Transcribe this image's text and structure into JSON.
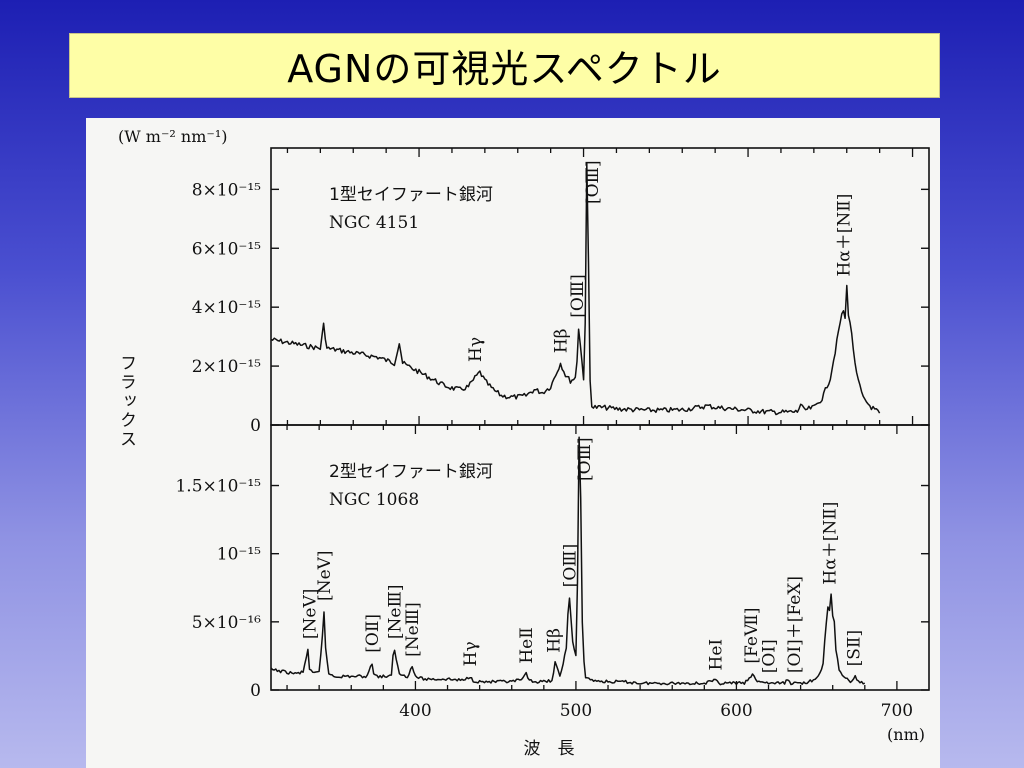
{
  "slide": {
    "title": "AGNの可視光スペクトル"
  },
  "figure": {
    "yunit": "(W m⁻² nm⁻¹)",
    "ylabel": "フラックス",
    "xlabel": "波　長",
    "xunit": "(nm)"
  },
  "chart_data": [
    {
      "type": "line",
      "title": "1型セイファート銀河",
      "subtitle": "NGC 4151",
      "xlim": [
        310,
        710
      ],
      "ylim": [
        0,
        9.2e-15
      ],
      "y_tick_values": [
        0,
        2e-15,
        4e-15,
        6e-15,
        8e-15
      ],
      "y_tick_labels": [
        "0",
        "2×10⁻¹⁵",
        "4×10⁻¹⁵",
        "6×10⁻¹⁵",
        "8×10⁻¹⁵"
      ],
      "series": [
        {
          "x": [
            310,
            315,
            320,
            325,
            330,
            335,
            340,
            342,
            344,
            350,
            355,
            360,
            365,
            370,
            375,
            380,
            385,
            388,
            390,
            395,
            400,
            405,
            410,
            415,
            420,
            425,
            430,
            434,
            437,
            440,
            445,
            450,
            455,
            460,
            465,
            470,
            475,
            480,
            483,
            486,
            489,
            492,
            495,
            496,
            497,
            500,
            501,
            502,
            503,
            504,
            505,
            506,
            510,
            515,
            520,
            530,
            540,
            550,
            560,
            570,
            575,
            580,
            590,
            600,
            610,
            620,
            630,
            632,
            634,
            640,
            645,
            650,
            653,
            656,
            658,
            659,
            660,
            661,
            662,
            664,
            666,
            670,
            675,
            680
          ],
          "values": [
            2.9e-15,
            2.85e-15,
            2.8e-15,
            2.75e-15,
            2.7e-15,
            2.65e-15,
            2.6e-15,
            3.4e-15,
            2.6e-15,
            2.55e-15,
            2.5e-15,
            2.45e-15,
            2.4e-15,
            2.35e-15,
            2.3e-15,
            2.2e-15,
            2.1e-15,
            2.8e-15,
            2.1e-15,
            1.95e-15,
            1.8e-15,
            1.65e-15,
            1.5e-15,
            1.35e-15,
            1.25e-15,
            1.2e-15,
            1.3e-15,
            1.6e-15,
            1.8e-15,
            1.5e-15,
            1.2e-15,
            1e-15,
            9.5e-16,
            9.5e-16,
            1e-15,
            1.2e-15,
            1.1e-15,
            1.3e-15,
            1.7e-15,
            2.1e-15,
            1.7e-15,
            1.5e-15,
            1.6e-15,
            2.2e-15,
            3.3e-15,
            1.6e-15,
            3.5e-15,
            8.8e-15,
            5.5e-15,
            1.5e-15,
            7e-16,
            6e-16,
            6e-16,
            5.8e-16,
            5.5e-16,
            5.2e-16,
            5e-16,
            5e-16,
            5.2e-16,
            6e-16,
            6.5e-16,
            6e-16,
            5.5e-16,
            5e-16,
            4.5e-16,
            4.3e-16,
            4.5e-16,
            7e-16,
            5e-16,
            6e-16,
            9e-16,
            1.6e-15,
            2.5e-15,
            3.5e-15,
            3.9e-15,
            3.6e-15,
            4.7e-15,
            3.8e-15,
            3.5e-15,
            2.6e-15,
            1.7e-15,
            9e-16,
            6e-16,
            4e-16
          ]
        }
      ],
      "annotations": [
        {
          "label": "Hγ",
          "x": 434
        },
        {
          "label": "Hβ",
          "x": 486
        },
        {
          "label": "[OⅢ]",
          "x": 496
        },
        {
          "label": "[OⅢ]",
          "x": 505
        },
        {
          "label": "Hα＋[NⅡ]",
          "x": 658
        }
      ]
    },
    {
      "type": "line",
      "title": "2型セイファート銀河",
      "subtitle": "NGC 1068",
      "xlim": [
        310,
        720
      ],
      "ylim": [
        0,
        1.9e-15
      ],
      "x_tick_values": [
        400,
        500,
        600,
        700
      ],
      "x_tick_labels": [
        "400",
        "500",
        "600",
        "700"
      ],
      "y_tick_values": [
        0,
        5e-16,
        1e-15,
        1.5e-15
      ],
      "y_tick_labels": [
        "0",
        "5×10⁻¹⁶",
        "10⁻¹⁵",
        "1.5×10⁻¹⁵"
      ],
      "series": [
        {
          "x": [
            310,
            315,
            320,
            325,
            330,
            333,
            334,
            336,
            340,
            342,
            343,
            344,
            346,
            350,
            360,
            370,
            372,
            373,
            374,
            376,
            380,
            385,
            386,
            387,
            388,
            390,
            395,
            397,
            398,
            400,
            405,
            410,
            420,
            430,
            434,
            436,
            440,
            450,
            460,
            467,
            468,
            469,
            470,
            475,
            480,
            485,
            486,
            487,
            490,
            494,
            495,
            496,
            498,
            500,
            501,
            502,
            503,
            504,
            505,
            506,
            510,
            520,
            530,
            540,
            550,
            560,
            570,
            580,
            587,
            590,
            600,
            605,
            608,
            610,
            612,
            620,
            630,
            632,
            634,
            640,
            645,
            650,
            652,
            654,
            655,
            656,
            657,
            658,
            659,
            660,
            661,
            662,
            664,
            668,
            672,
            673,
            674,
            676,
            680
          ],
          "values": [
            1.5e-16,
            1.4e-16,
            1.3e-16,
            1.2e-16,
            1.3e-16,
            3e-16,
            1.5e-16,
            1.2e-16,
            1.3e-16,
            4e-16,
            5.8e-16,
            3e-16,
            1.2e-16,
            1e-16,
            1e-16,
            1e-16,
            1.8e-16,
            2e-16,
            1.2e-16,
            1e-16,
            1e-16,
            1e-16,
            2.5e-16,
            3e-16,
            2.2e-16,
            1.2e-16,
            1e-16,
            1.5e-16,
            1.7e-16,
            1e-16,
            8e-17,
            8e-17,
            8e-17,
            7e-17,
            1e-16,
            7e-17,
            6e-17,
            6e-17,
            6e-17,
            8e-17,
            1e-16,
            1.2e-16,
            8e-17,
            6e-17,
            6e-17,
            7e-17,
            1.2e-16,
            2e-16,
            1e-16,
            3e-16,
            5.5e-16,
            6.8e-16,
            3.5e-16,
            2.5e-16,
            8e-16,
            1.85e-15,
            1.4e-15,
            5e-16,
            2e-16,
            1e-16,
            7e-17,
            6e-17,
            6e-17,
            5e-17,
            5e-17,
            5e-17,
            5e-17,
            5e-17,
            7e-17,
            5e-17,
            5e-17,
            5e-17,
            8e-17,
            1.2e-16,
            7e-17,
            5e-17,
            5e-17,
            8e-17,
            5e-17,
            5e-17,
            6e-17,
            8e-17,
            1.2e-16,
            2e-16,
            3.5e-16,
            5e-16,
            6e-16,
            5.8e-16,
            7e-16,
            5.5e-16,
            5e-16,
            3e-16,
            1.5e-16,
            8e-17,
            6e-17,
            9e-17,
            1e-16,
            6e-17,
            5e-17
          ]
        }
      ],
      "annotations": [
        {
          "label": "[NeV]",
          "x": 334
        },
        {
          "label": "[NeV]",
          "x": 343
        },
        {
          "label": "[OⅡ]",
          "x": 373
        },
        {
          "label": "[NeⅢ]",
          "x": 387
        },
        {
          "label": "[NeⅢ]",
          "x": 398
        },
        {
          "label": "Hγ",
          "x": 434
        },
        {
          "label": "HeⅡ",
          "x": 469
        },
        {
          "label": "Hβ",
          "x": 486
        },
        {
          "label": "[OⅢ]",
          "x": 496
        },
        {
          "label": "[OⅢ]",
          "x": 505
        },
        {
          "label": "HeⅠ",
          "x": 587
        },
        {
          "label": "[FeⅦ]",
          "x": 609
        },
        {
          "label": "[OⅠ]",
          "x": 620
        },
        {
          "label": "[OⅠ]＋[FeX]",
          "x": 636
        },
        {
          "label": "Hα＋[NⅡ]",
          "x": 658
        },
        {
          "label": "[SⅡ]",
          "x": 673
        }
      ]
    }
  ]
}
